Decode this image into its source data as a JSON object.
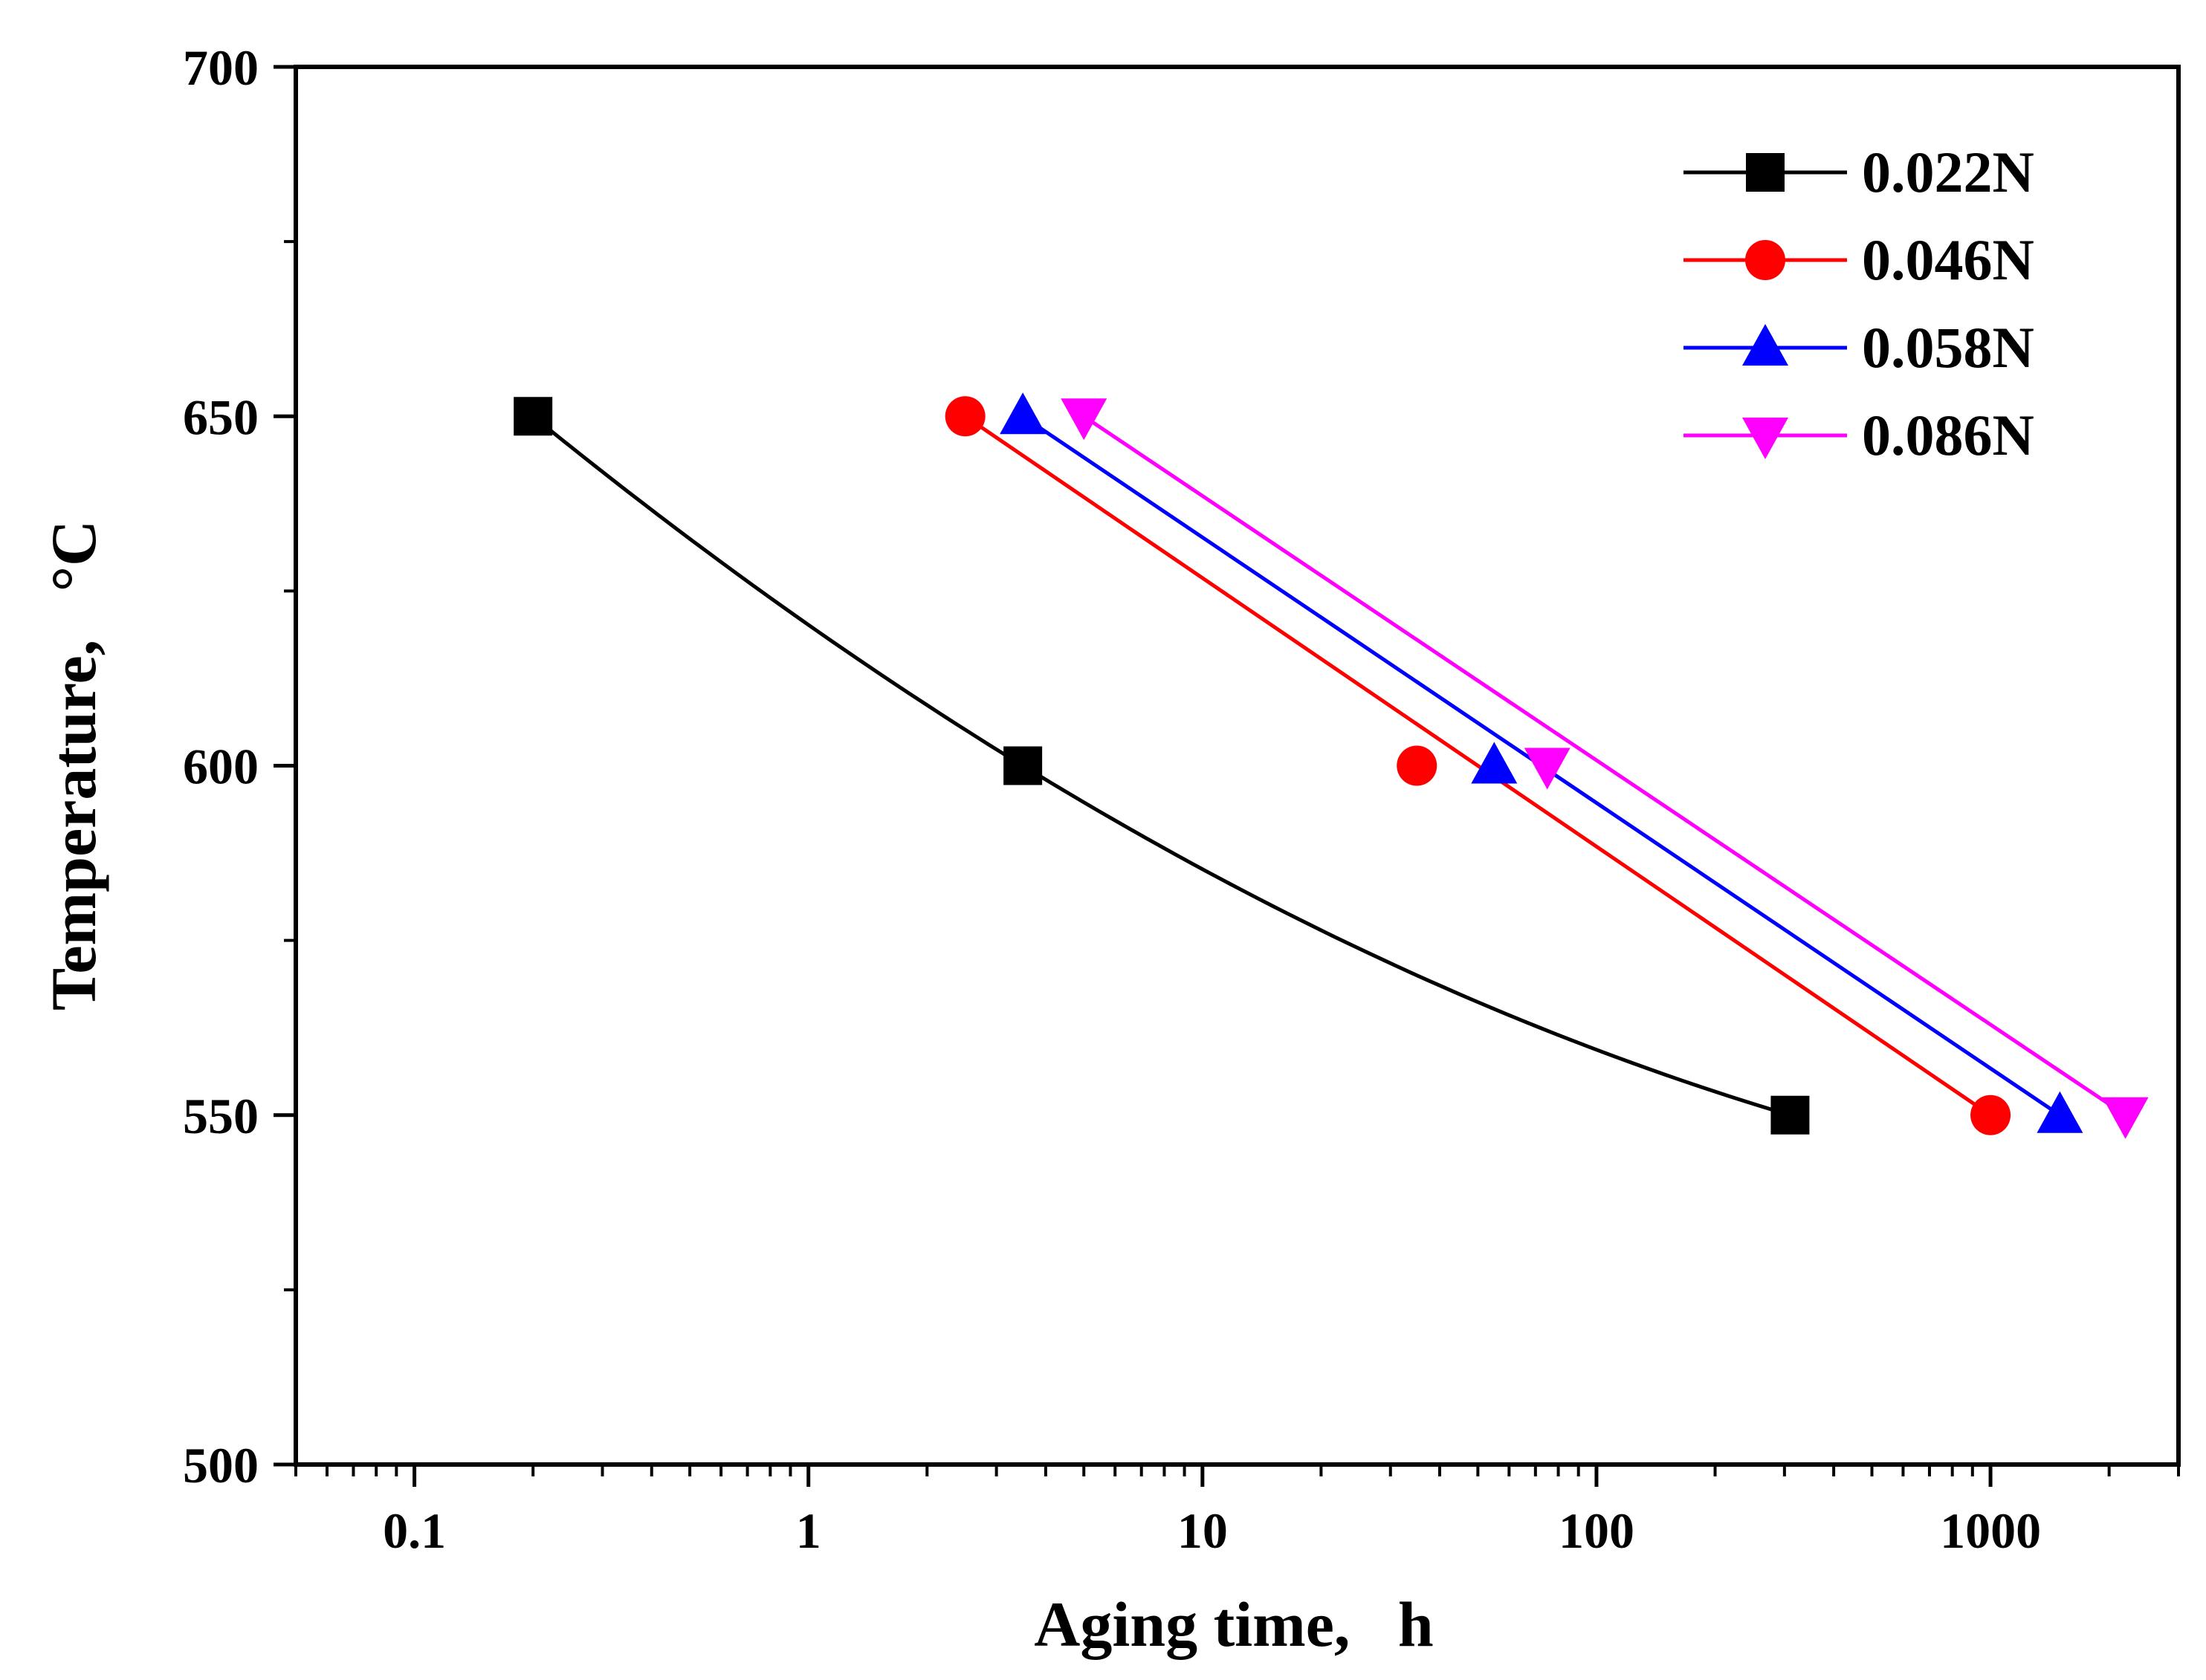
{
  "chart_data": {
    "type": "scatter",
    "xlabel": "Aging time,   h",
    "ylabel": "Temperature,   °C",
    "xscale": "log",
    "xlim": [
      0.05,
      3000
    ],
    "ylim": [
      500,
      700
    ],
    "xticks": [
      {
        "value": 0.1,
        "label": "0.1"
      },
      {
        "value": 1,
        "label": "1"
      },
      {
        "value": 10,
        "label": "10"
      },
      {
        "value": 100,
        "label": "100"
      },
      {
        "value": 1000,
        "label": "1000"
      }
    ],
    "yticks": [
      {
        "value": 500,
        "label": "500"
      },
      {
        "value": 550,
        "label": "550"
      },
      {
        "value": 600,
        "label": "600"
      },
      {
        "value": 650,
        "label": "650"
      },
      {
        "value": 700,
        "label": "700"
      }
    ],
    "legend_position": "top-right",
    "series": [
      {
        "name": "0.022N",
        "color": "#000000",
        "marker": "square",
        "fit": "curve",
        "x": [
          0.2,
          3.5,
          310
        ],
        "y": [
          650,
          600,
          550
        ]
      },
      {
        "name": "0.046N",
        "color": "#ff0000",
        "marker": "circle",
        "fit": "line",
        "x": [
          2.5,
          35,
          1000
        ],
        "y": [
          650,
          600,
          550
        ]
      },
      {
        "name": "0.058N",
        "color": "#0000ff",
        "marker": "triangle-up",
        "fit": "line",
        "x": [
          3.5,
          55,
          1500
        ],
        "y": [
          650,
          600,
          550
        ]
      },
      {
        "name": "0.086N",
        "color": "#ff00ff",
        "marker": "triangle-down",
        "fit": "line",
        "x": [
          5,
          75,
          2200
        ],
        "y": [
          650,
          600,
          550
        ]
      }
    ]
  }
}
